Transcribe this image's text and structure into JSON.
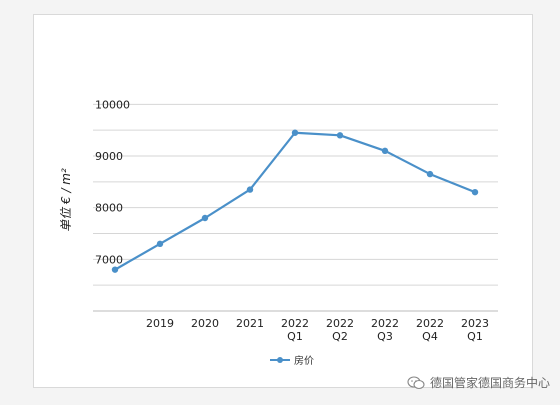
{
  "chart_data": {
    "type": "line",
    "categories": [
      "",
      "2019",
      "2020",
      "2021",
      "2022\nQ1",
      "2022\nQ2",
      "2022\nQ3",
      "2022\nQ4",
      "2023\nQ1"
    ],
    "series": [
      {
        "name": "房价",
        "values": [
          6800,
          7300,
          7800,
          8350,
          9450,
          9400,
          9100,
          8650,
          8300
        ],
        "color": "#4a90c9"
      }
    ],
    "ylabel": "单位 € / m²",
    "y_ticks": [
      7000,
      8000,
      9000,
      10000
    ],
    "ylim": [
      6000,
      10200
    ],
    "grid": true,
    "legend_position": "bottom-center"
  },
  "watermark": {
    "text": "德国管家德国商务中心",
    "icon": "wechat-icon"
  }
}
